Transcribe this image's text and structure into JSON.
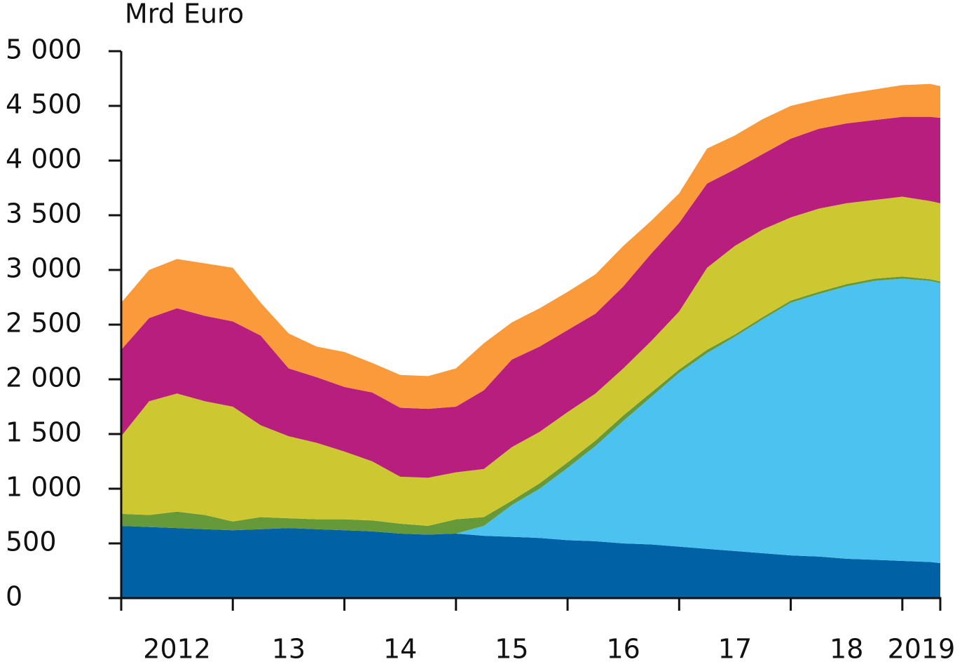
{
  "chart_data": {
    "type": "stacked_area",
    "y_axis_label": "Mrd Euro",
    "x": [
      2012.0,
      2012.25,
      2012.5,
      2012.75,
      2013.0,
      2013.25,
      2013.5,
      2013.75,
      2014.0,
      2014.25,
      2014.5,
      2014.75,
      2015.0,
      2015.25,
      2015.5,
      2015.75,
      2016.0,
      2016.25,
      2016.5,
      2016.75,
      2017.0,
      2017.25,
      2017.5,
      2017.75,
      2018.0,
      2018.25,
      2018.5,
      2018.75,
      2019.0,
      2019.25,
      2019.34
    ],
    "series": [
      {
        "color": "#0061a5",
        "values": [
          660,
          650,
          640,
          630,
          620,
          630,
          640,
          630,
          620,
          610,
          590,
          580,
          590,
          570,
          560,
          550,
          530,
          520,
          500,
          490,
          470,
          450,
          430,
          410,
          390,
          380,
          360,
          350,
          340,
          330,
          320
        ]
      },
      {
        "color": "#4cc2f0",
        "values": [
          0,
          0,
          0,
          0,
          0,
          0,
          0,
          0,
          0,
          0,
          0,
          0,
          0,
          90,
          290,
          450,
          660,
          870,
          1120,
          1350,
          1590,
          1790,
          1960,
          2140,
          2310,
          2400,
          2490,
          2550,
          2580,
          2570,
          2560
        ]
      },
      {
        "color": "#66993a",
        "values": [
          110,
          110,
          150,
          130,
          80,
          110,
          90,
          90,
          100,
          100,
          90,
          80,
          130,
          80,
          40,
          50,
          50,
          50,
          50,
          40,
          30,
          30,
          20,
          20,
          20,
          20,
          20,
          20,
          20,
          15,
          15
        ]
      },
      {
        "color": "#cdc832",
        "values": [
          710,
          1040,
          1080,
          1040,
          1050,
          840,
          750,
          700,
          620,
          540,
          430,
          440,
          430,
          440,
          490,
          470,
          460,
          430,
          430,
          470,
          530,
          750,
          810,
          800,
          760,
          760,
          740,
          720,
          730,
          715,
          715
        ]
      },
      {
        "color": "#b81e7e",
        "values": [
          790,
          760,
          780,
          780,
          780,
          820,
          620,
          600,
          590,
          630,
          630,
          630,
          600,
          720,
          800,
          780,
          750,
          730,
          750,
          800,
          810,
          770,
          700,
          690,
          720,
          730,
          730,
          730,
          730,
          770,
          780
        ]
      },
      {
        "color": "#fa9a3a",
        "values": [
          430,
          440,
          450,
          480,
          490,
          300,
          320,
          280,
          320,
          270,
          300,
          300,
          350,
          430,
          340,
          350,
          350,
          360,
          370,
          300,
          270,
          320,
          310,
          320,
          300,
          270,
          270,
          280,
          290,
          300,
          290
        ]
      }
    ],
    "xlim": [
      2012.0,
      2019.34
    ],
    "xticks": [
      2012,
      2013,
      2014,
      2015,
      2016,
      2017,
      2018,
      2019,
      2019.34
    ],
    "xlabels": [
      {
        "value": 2012.5,
        "label": "2012"
      },
      {
        "value": 2013.5,
        "label": "13"
      },
      {
        "value": 2014.5,
        "label": "14"
      },
      {
        "value": 2015.5,
        "label": "15"
      },
      {
        "value": 2016.5,
        "label": "16"
      },
      {
        "value": 2017.5,
        "label": "17"
      },
      {
        "value": 2018.5,
        "label": "18"
      },
      {
        "value": 2019.17,
        "label": "2019"
      }
    ],
    "ylim": [
      0,
      5000
    ],
    "yticks": [
      0,
      500,
      {
        "value": 1000,
        "label": "1 000"
      },
      {
        "value": 1500,
        "label": "1 500"
      },
      {
        "value": 2000,
        "label": "2 000"
      },
      {
        "value": 2500,
        "label": "2 500"
      },
      {
        "value": 3000,
        "label": "3 000"
      },
      {
        "value": 3500,
        "label": "3 500"
      },
      {
        "value": 4000,
        "label": "4 000"
      },
      {
        "value": 4500,
        "label": "4 500"
      },
      {
        "value": 5000,
        "label": "5 000"
      }
    ]
  }
}
